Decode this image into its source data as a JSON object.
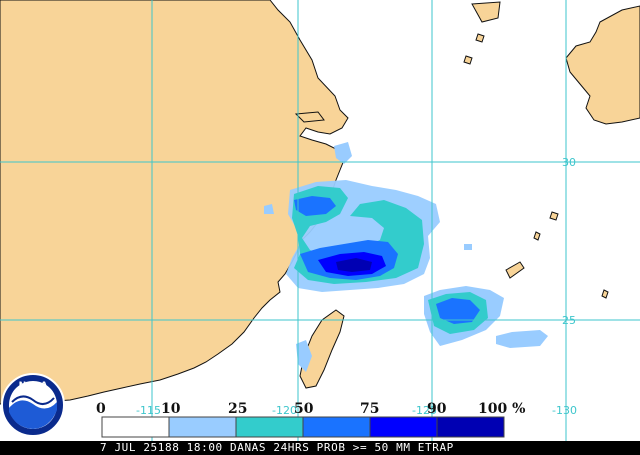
{
  "colors": {
    "ocean": "#ffffff",
    "land": "#f8d498",
    "grid": "#3ec6cc",
    "coast": "#111111",
    "prob_10": "#99ccff",
    "prob_25": "#33cccc",
    "prob_50": "#1a73ff",
    "prob_75": "#0000ff",
    "prob_90": "#0000b3"
  },
  "grid_labels": {
    "lat_30": "30",
    "lat_25": "25",
    "lon_115": "-115",
    "lon_120": "-120",
    "lon_125": "-125",
    "lon_130": "-130"
  },
  "legend": {
    "labels": [
      "0",
      "10",
      "25",
      "50",
      "75",
      "90",
      "100 %"
    ],
    "colors": [
      "#ffffff",
      "#99ccff",
      "#33cccc",
      "#1a73ff",
      "#0000ff",
      "#0000b3"
    ]
  },
  "logo": {
    "text": "NOAA",
    "icon": "noaa-logo-icon"
  },
  "footer": {
    "text": "7 JUL 25188 18:00 DANAS 24HRS PROB >= 50 MM ETRAP"
  }
}
